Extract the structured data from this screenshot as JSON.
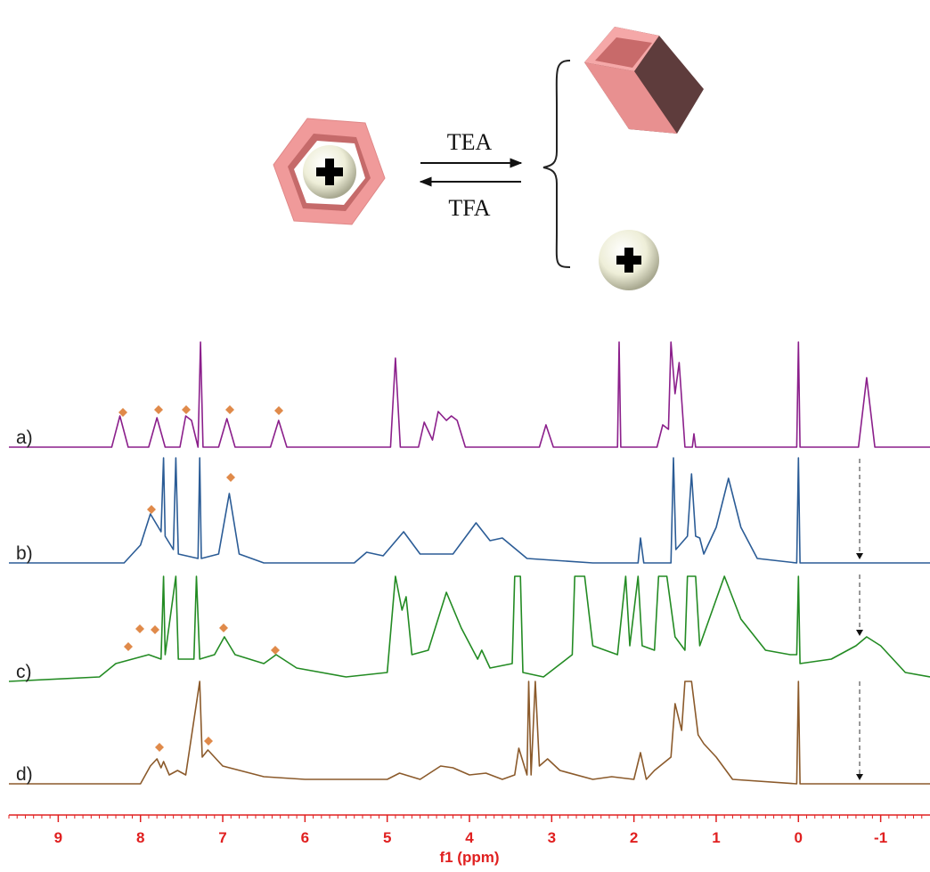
{
  "scheme": {
    "forward": "TEA",
    "reverse": "TFA"
  },
  "chart_data": {
    "type": "line",
    "xlabel": "f1 (ppm)",
    "xlim": [
      9.6,
      -1.6
    ],
    "xticks": [
      9,
      8,
      7,
      6,
      5,
      4,
      3,
      2,
      1,
      0,
      -1
    ],
    "series": [
      {
        "name": "a)",
        "color": "#8b1f8b",
        "x": [
          9.6,
          8.35,
          8.25,
          8.15,
          7.9,
          7.8,
          7.7,
          7.52,
          7.45,
          7.38,
          7.3,
          7.27,
          7.24,
          7.05,
          6.95,
          6.85,
          6.42,
          6.32,
          6.22,
          4.96,
          4.9,
          4.84,
          4.62,
          4.55,
          4.45,
          4.38,
          4.28,
          4.22,
          4.15,
          4.05,
          3.15,
          3.07,
          2.98,
          2.2,
          2.18,
          2.16,
          1.72,
          1.65,
          1.58,
          1.55,
          1.5,
          1.45,
          1.38,
          1.29,
          1.27,
          1.25,
          0.02,
          0,
          -0.02,
          -0.73,
          -0.83,
          -0.93,
          -1.6
        ],
        "values": [
          0,
          0,
          35,
          0,
          0,
          33,
          0,
          0,
          35,
          30,
          0,
          118,
          0,
          0,
          32,
          0,
          0,
          30,
          0,
          0,
          100,
          0,
          0,
          28,
          8,
          40,
          30,
          35,
          30,
          0,
          0,
          25,
          0,
          0,
          118,
          0,
          0,
          25,
          20,
          118,
          60,
          95,
          0,
          0,
          15,
          0,
          0,
          118,
          0,
          0,
          78,
          0,
          0
        ]
      },
      {
        "name": "b)",
        "color": "#2b5c96",
        "x": [
          9.6,
          8.2,
          8.0,
          7.88,
          7.75,
          7.72,
          7.7,
          7.6,
          7.57,
          7.54,
          7.3,
          7.28,
          7.26,
          7.05,
          6.92,
          6.8,
          6.5,
          5.4,
          5.25,
          5.05,
          4.8,
          4.6,
          4.2,
          3.92,
          3.75,
          3.6,
          3.3,
          2.5,
          1.95,
          1.92,
          1.88,
          1.55,
          1.52,
          1.49,
          1.35,
          1.3,
          1.25,
          1.2,
          1.15,
          1.0,
          0.85,
          0.7,
          0.5,
          0.02,
          0,
          -0.02,
          -1.6
        ],
        "values": [
          0,
          0,
          20,
          55,
          35,
          118,
          30,
          15,
          118,
          10,
          5,
          118,
          5,
          10,
          78,
          10,
          0,
          0,
          12,
          8,
          35,
          10,
          10,
          45,
          25,
          28,
          5,
          0,
          0,
          28,
          0,
          0,
          118,
          15,
          30,
          100,
          30,
          28,
          10,
          40,
          95,
          40,
          5,
          0,
          118,
          0,
          0
        ]
      },
      {
        "name": "c)",
        "color": "#238b23",
        "x": [
          9.6,
          8.5,
          8.3,
          8.1,
          7.9,
          7.75,
          7.72,
          7.7,
          7.57,
          7.54,
          7.35,
          7.32,
          7.28,
          7.1,
          6.98,
          6.85,
          6.5,
          6.35,
          6.1,
          5.5,
          5.0,
          4.9,
          4.82,
          4.77,
          4.7,
          4.5,
          4.28,
          4.1,
          3.9,
          3.85,
          3.75,
          3.48,
          3.45,
          3.38,
          3.35,
          3.1,
          2.75,
          2.72,
          2.6,
          2.5,
          2.2,
          2.1,
          2.05,
          1.95,
          1.9,
          1.75,
          1.7,
          1.6,
          1.5,
          1.38,
          1.35,
          1.25,
          1.2,
          0.9,
          0.7,
          0.4,
          0.1,
          0.02,
          0,
          -0.02,
          -0.4,
          -0.7,
          -0.83,
          -1.0,
          -1.3,
          -1.6
        ],
        "values": [
          0,
          5,
          20,
          25,
          30,
          25,
          118,
          30,
          118,
          25,
          25,
          118,
          25,
          30,
          50,
          30,
          20,
          30,
          15,
          5,
          10,
          118,
          80,
          95,
          30,
          35,
          100,
          60,
          25,
          35,
          15,
          20,
          118,
          118,
          10,
          5,
          30,
          118,
          118,
          40,
          30,
          118,
          40,
          118,
          40,
          35,
          118,
          118,
          50,
          35,
          118,
          118,
          40,
          118,
          70,
          35,
          30,
          30,
          118,
          20,
          25,
          40,
          50,
          40,
          10,
          5
        ]
      },
      {
        "name": "d)",
        "color": "#8b5a2b",
        "x": [
          9.6,
          8.0,
          7.88,
          7.8,
          7.75,
          7.72,
          7.65,
          7.55,
          7.45,
          7.28,
          7.25,
          7.18,
          7.0,
          6.5,
          6.0,
          5.0,
          4.85,
          4.6,
          4.35,
          4.2,
          4.0,
          3.8,
          3.6,
          3.45,
          3.4,
          3.3,
          3.28,
          3.25,
          3.2,
          3.15,
          3.05,
          2.9,
          2.5,
          2.27,
          2.0,
          1.92,
          1.85,
          1.75,
          1.55,
          1.5,
          1.42,
          1.38,
          1.3,
          1.22,
          1.15,
          1.0,
          0.8,
          0.02,
          0,
          -0.02,
          -1.6
        ],
        "values": [
          0,
          0,
          20,
          28,
          18,
          25,
          10,
          15,
          10,
          115,
          30,
          38,
          20,
          8,
          5,
          5,
          12,
          5,
          20,
          18,
          10,
          12,
          5,
          10,
          40,
          10,
          115,
          10,
          115,
          20,
          28,
          15,
          5,
          8,
          5,
          35,
          5,
          15,
          30,
          90,
          60,
          115,
          115,
          55,
          45,
          30,
          5,
          0,
          115,
          0,
          0
        ]
      }
    ]
  }
}
